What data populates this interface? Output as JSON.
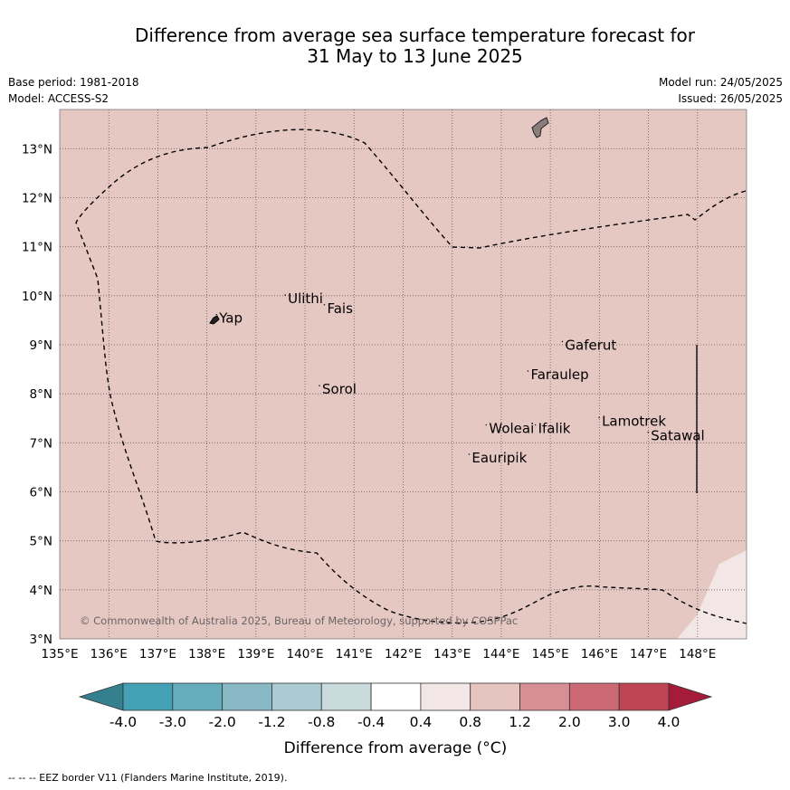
{
  "title": {
    "line1": "Difference from average sea surface temperature forecast for",
    "line2": "31 May to 13 June 2025"
  },
  "meta": {
    "base_period": "Base period: 1981-2018",
    "model": "Model: ACCESS-S2",
    "model_run": "Model run: 24/05/2025",
    "issued": "Issued: 26/05/2025"
  },
  "map": {
    "lon_range": [
      135,
      149
    ],
    "lat_range": [
      3,
      13.8
    ],
    "lon_ticks": [
      "135°E",
      "136°E",
      "137°E",
      "138°E",
      "139°E",
      "140°E",
      "141°E",
      "142°E",
      "143°E",
      "144°E",
      "145°E",
      "146°E",
      "147°E",
      "148°E"
    ],
    "lat_ticks": [
      "3°N",
      "4°N",
      "5°N",
      "6°N",
      "7°N",
      "8°N",
      "9°N",
      "10°N",
      "11°N",
      "12°N",
      "13°N"
    ],
    "background_color": "#e6c8c3",
    "copyright": "© Commonwealth of Australia 2025, Bureau of Meteorology, supported by COSPPac",
    "places": [
      {
        "name": "Yap",
        "lon": 138.25,
        "lat": 9.45
      },
      {
        "name": "Ulithi",
        "lon": 139.65,
        "lat": 9.85
      },
      {
        "name": "Fais",
        "lon": 140.45,
        "lat": 9.65
      },
      {
        "name": "Sorol",
        "lon": 140.35,
        "lat": 8.0
      },
      {
        "name": "Gaferut",
        "lon": 145.3,
        "lat": 8.9
      },
      {
        "name": "Faraulep",
        "lon": 144.6,
        "lat": 8.3
      },
      {
        "name": "Woleai",
        "lon": 143.75,
        "lat": 7.2
      },
      {
        "name": "Ifalik",
        "lon": 144.75,
        "lat": 7.2
      },
      {
        "name": "Lamotrek",
        "lon": 146.05,
        "lat": 7.35
      },
      {
        "name": "Satawal",
        "lon": 147.05,
        "lat": 7.05
      },
      {
        "name": "Eauripik",
        "lon": 143.4,
        "lat": 6.6
      }
    ]
  },
  "colorbar": {
    "labels": [
      "-4.0",
      "-3.0",
      "-2.0",
      "-1.2",
      "-0.8",
      "-0.4",
      "0.4",
      "0.8",
      "1.2",
      "2.0",
      "3.0",
      "4.0"
    ],
    "colors": [
      "#44a0b5",
      "#66adbc",
      "#88b8c4",
      "#a9cbd1",
      "#c9dadd",
      "#ffffff",
      "#f3e6e6",
      "#e6c5c1",
      "#d68f94",
      "#cb6975",
      "#bf4555"
    ],
    "under_color": "#35808f",
    "over_color": "#a51c3a",
    "title": "Difference from average (°C)"
  },
  "footer": "--  --  -- EEZ border V11 (Flanders Marine Institute, 2019)."
}
